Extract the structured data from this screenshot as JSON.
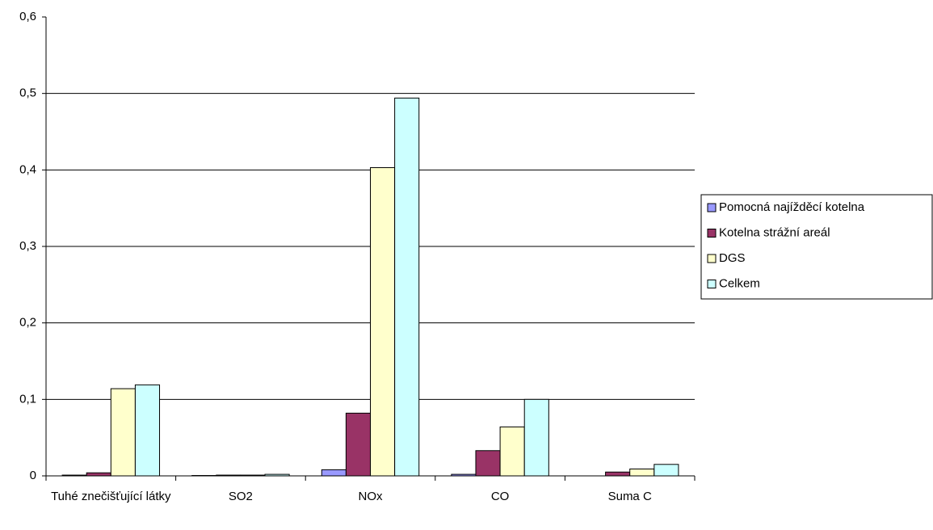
{
  "chart_data": {
    "type": "bar",
    "categories": [
      "Tuhé znečišťující látky",
      "SO2",
      "NOx",
      "CO",
      "Suma C"
    ],
    "series": [
      {
        "name": "Pomocná najížděcí kotelna",
        "color": "#9999ff",
        "values": [
          0.001,
          0.0005,
          0.008,
          0.002,
          0
        ]
      },
      {
        "name": "Kotelna strážní areál",
        "color": "#993366",
        "values": [
          0.004,
          0.001,
          0.082,
          0.033,
          0.005
        ]
      },
      {
        "name": "DGS",
        "color": "#ffffcc",
        "values": [
          0.114,
          0.001,
          0.403,
          0.064,
          0.009
        ]
      },
      {
        "name": "Celkem",
        "color": "#ccffff",
        "values": [
          0.119,
          0.002,
          0.494,
          0.1,
          0.015
        ]
      }
    ],
    "ylim": [
      0,
      0.6
    ],
    "yticks": [
      0,
      {
        "value": 0.1,
        "label": "0,1"
      },
      {
        "value": 0.2,
        "label": "0,2"
      },
      {
        "value": 0.3,
        "label": "0,3"
      },
      {
        "value": 0.4,
        "label": "0,4"
      },
      {
        "value": 0.5,
        "label": "0,5"
      },
      {
        "value": 0.6,
        "label": "0,6"
      }
    ],
    "grid": true,
    "legend": "right"
  }
}
